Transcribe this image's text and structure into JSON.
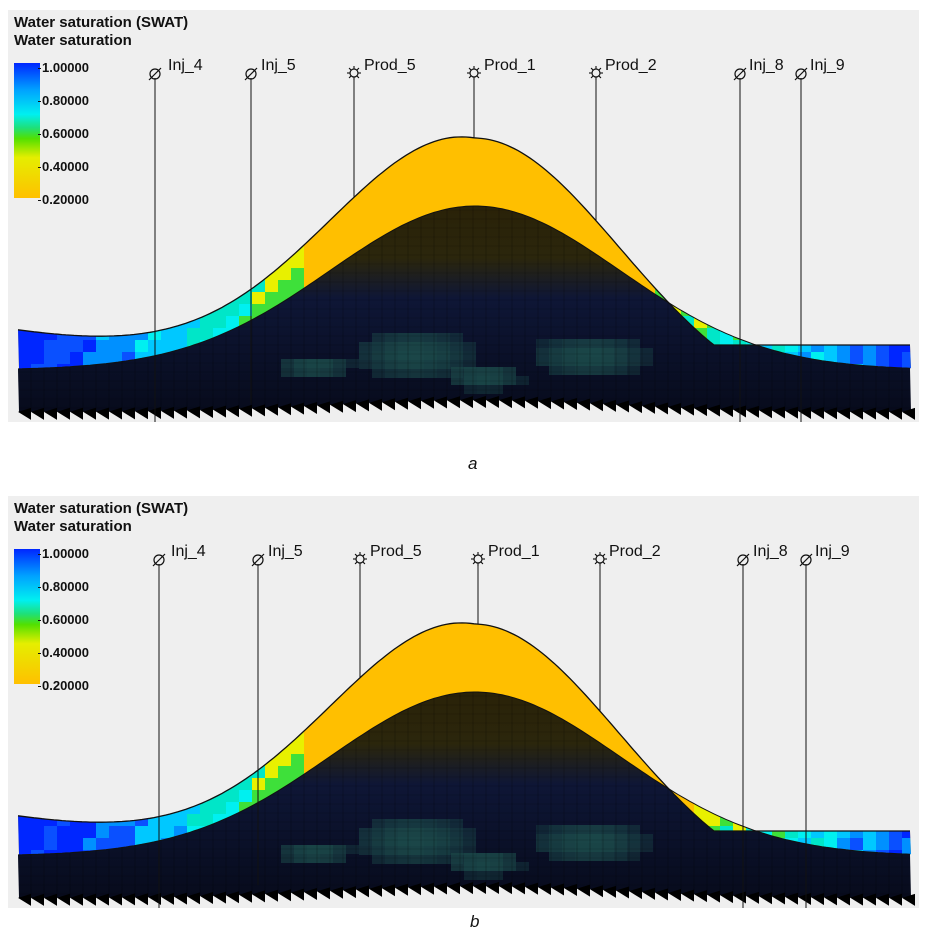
{
  "panels": [
    {
      "id": "a",
      "caption": "a",
      "title": "Water saturation (SWAT)",
      "subtitle": "Water saturation",
      "legend_ticks": [
        "1.00000",
        "0.80000",
        "0.60000",
        "0.40000",
        "0.20000"
      ],
      "wells": [
        {
          "name": "Inj_4",
          "type": "injector"
        },
        {
          "name": "Inj_5",
          "type": "injector"
        },
        {
          "name": "Prod_5",
          "type": "producer"
        },
        {
          "name": "Prod_1",
          "type": "producer"
        },
        {
          "name": "Prod_2",
          "type": "producer"
        },
        {
          "name": "Inj_8",
          "type": "injector"
        },
        {
          "name": "Inj_9",
          "type": "injector"
        }
      ]
    },
    {
      "id": "b",
      "caption": "b",
      "title": "Water saturation (SWAT)",
      "subtitle": "Water saturation",
      "legend_ticks": [
        "1.00000",
        "0.80000",
        "0.60000",
        "0.40000",
        "0.20000"
      ],
      "wells": [
        {
          "name": "Inj_4",
          "type": "injector"
        },
        {
          "name": "Inj_5",
          "type": "injector"
        },
        {
          "name": "Prod_5",
          "type": "producer"
        },
        {
          "name": "Prod_1",
          "type": "producer"
        },
        {
          "name": "Prod_2",
          "type": "producer"
        },
        {
          "name": "Inj_8",
          "type": "injector"
        },
        {
          "name": "Inj_9",
          "type": "injector"
        }
      ]
    }
  ],
  "colors": {
    "oil": "#ffbf00",
    "water_high": "#0026ff",
    "water_mid": "#00c8ff",
    "cyan": "#00f0f0",
    "green": "#3ee03a",
    "yellow": "#e8f000",
    "dark_body": "#0c1330",
    "dark_cells": "#1c4a4a",
    "background": "#efefef"
  }
}
